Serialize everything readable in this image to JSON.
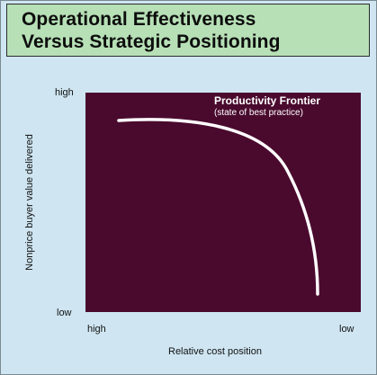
{
  "title": {
    "line1": "Operational Effectiveness",
    "line2": "Versus Strategic Positioning"
  },
  "colors": {
    "background": "#cfe6f2",
    "title_box": "#b7e0b6",
    "plot_area": "#4a0a2e",
    "curve": "#ffffff"
  },
  "y_axis": {
    "title": "Nonprice buyer value delivered",
    "top_label": "high",
    "bottom_label": "low"
  },
  "x_axis": {
    "title": "Relative cost position",
    "left_label": "high",
    "right_label": "low"
  },
  "frontier": {
    "title": "Productivity Frontier",
    "subtitle": "(state of best practice)"
  }
}
